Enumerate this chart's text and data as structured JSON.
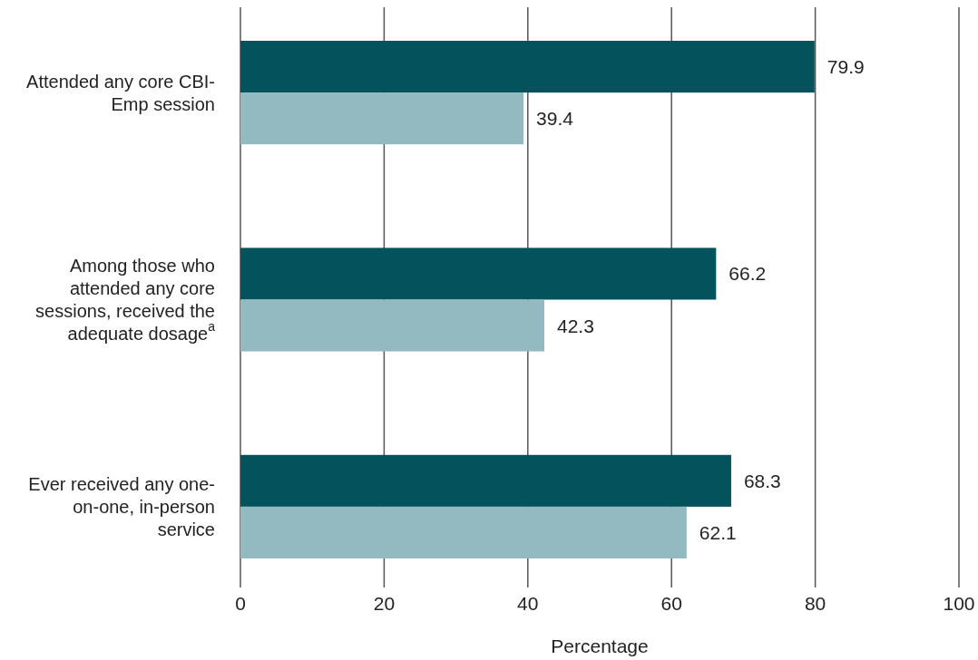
{
  "chart_data": {
    "type": "bar",
    "orientation": "horizontal",
    "xlabel": "Percentage",
    "categories": [
      "Attended any core CBI-Emp session",
      "Among those who attended any core sessions, received the adequate dosage$^{a}$",
      "Ever received any one-on-one, in-person service"
    ],
    "series": [
      {
        "color": "#03525c",
        "values": [
          79.9,
          66.2,
          68.3
        ]
      },
      {
        "color": "#93b9c1",
        "values": [
          39.4,
          42.3,
          62.1
        ]
      }
    ],
    "xlim": [
      0,
      100
    ],
    "xticks": [
      0,
      20,
      40,
      60,
      80,
      100
    ],
    "grid": "x",
    "data_labels": true
  }
}
